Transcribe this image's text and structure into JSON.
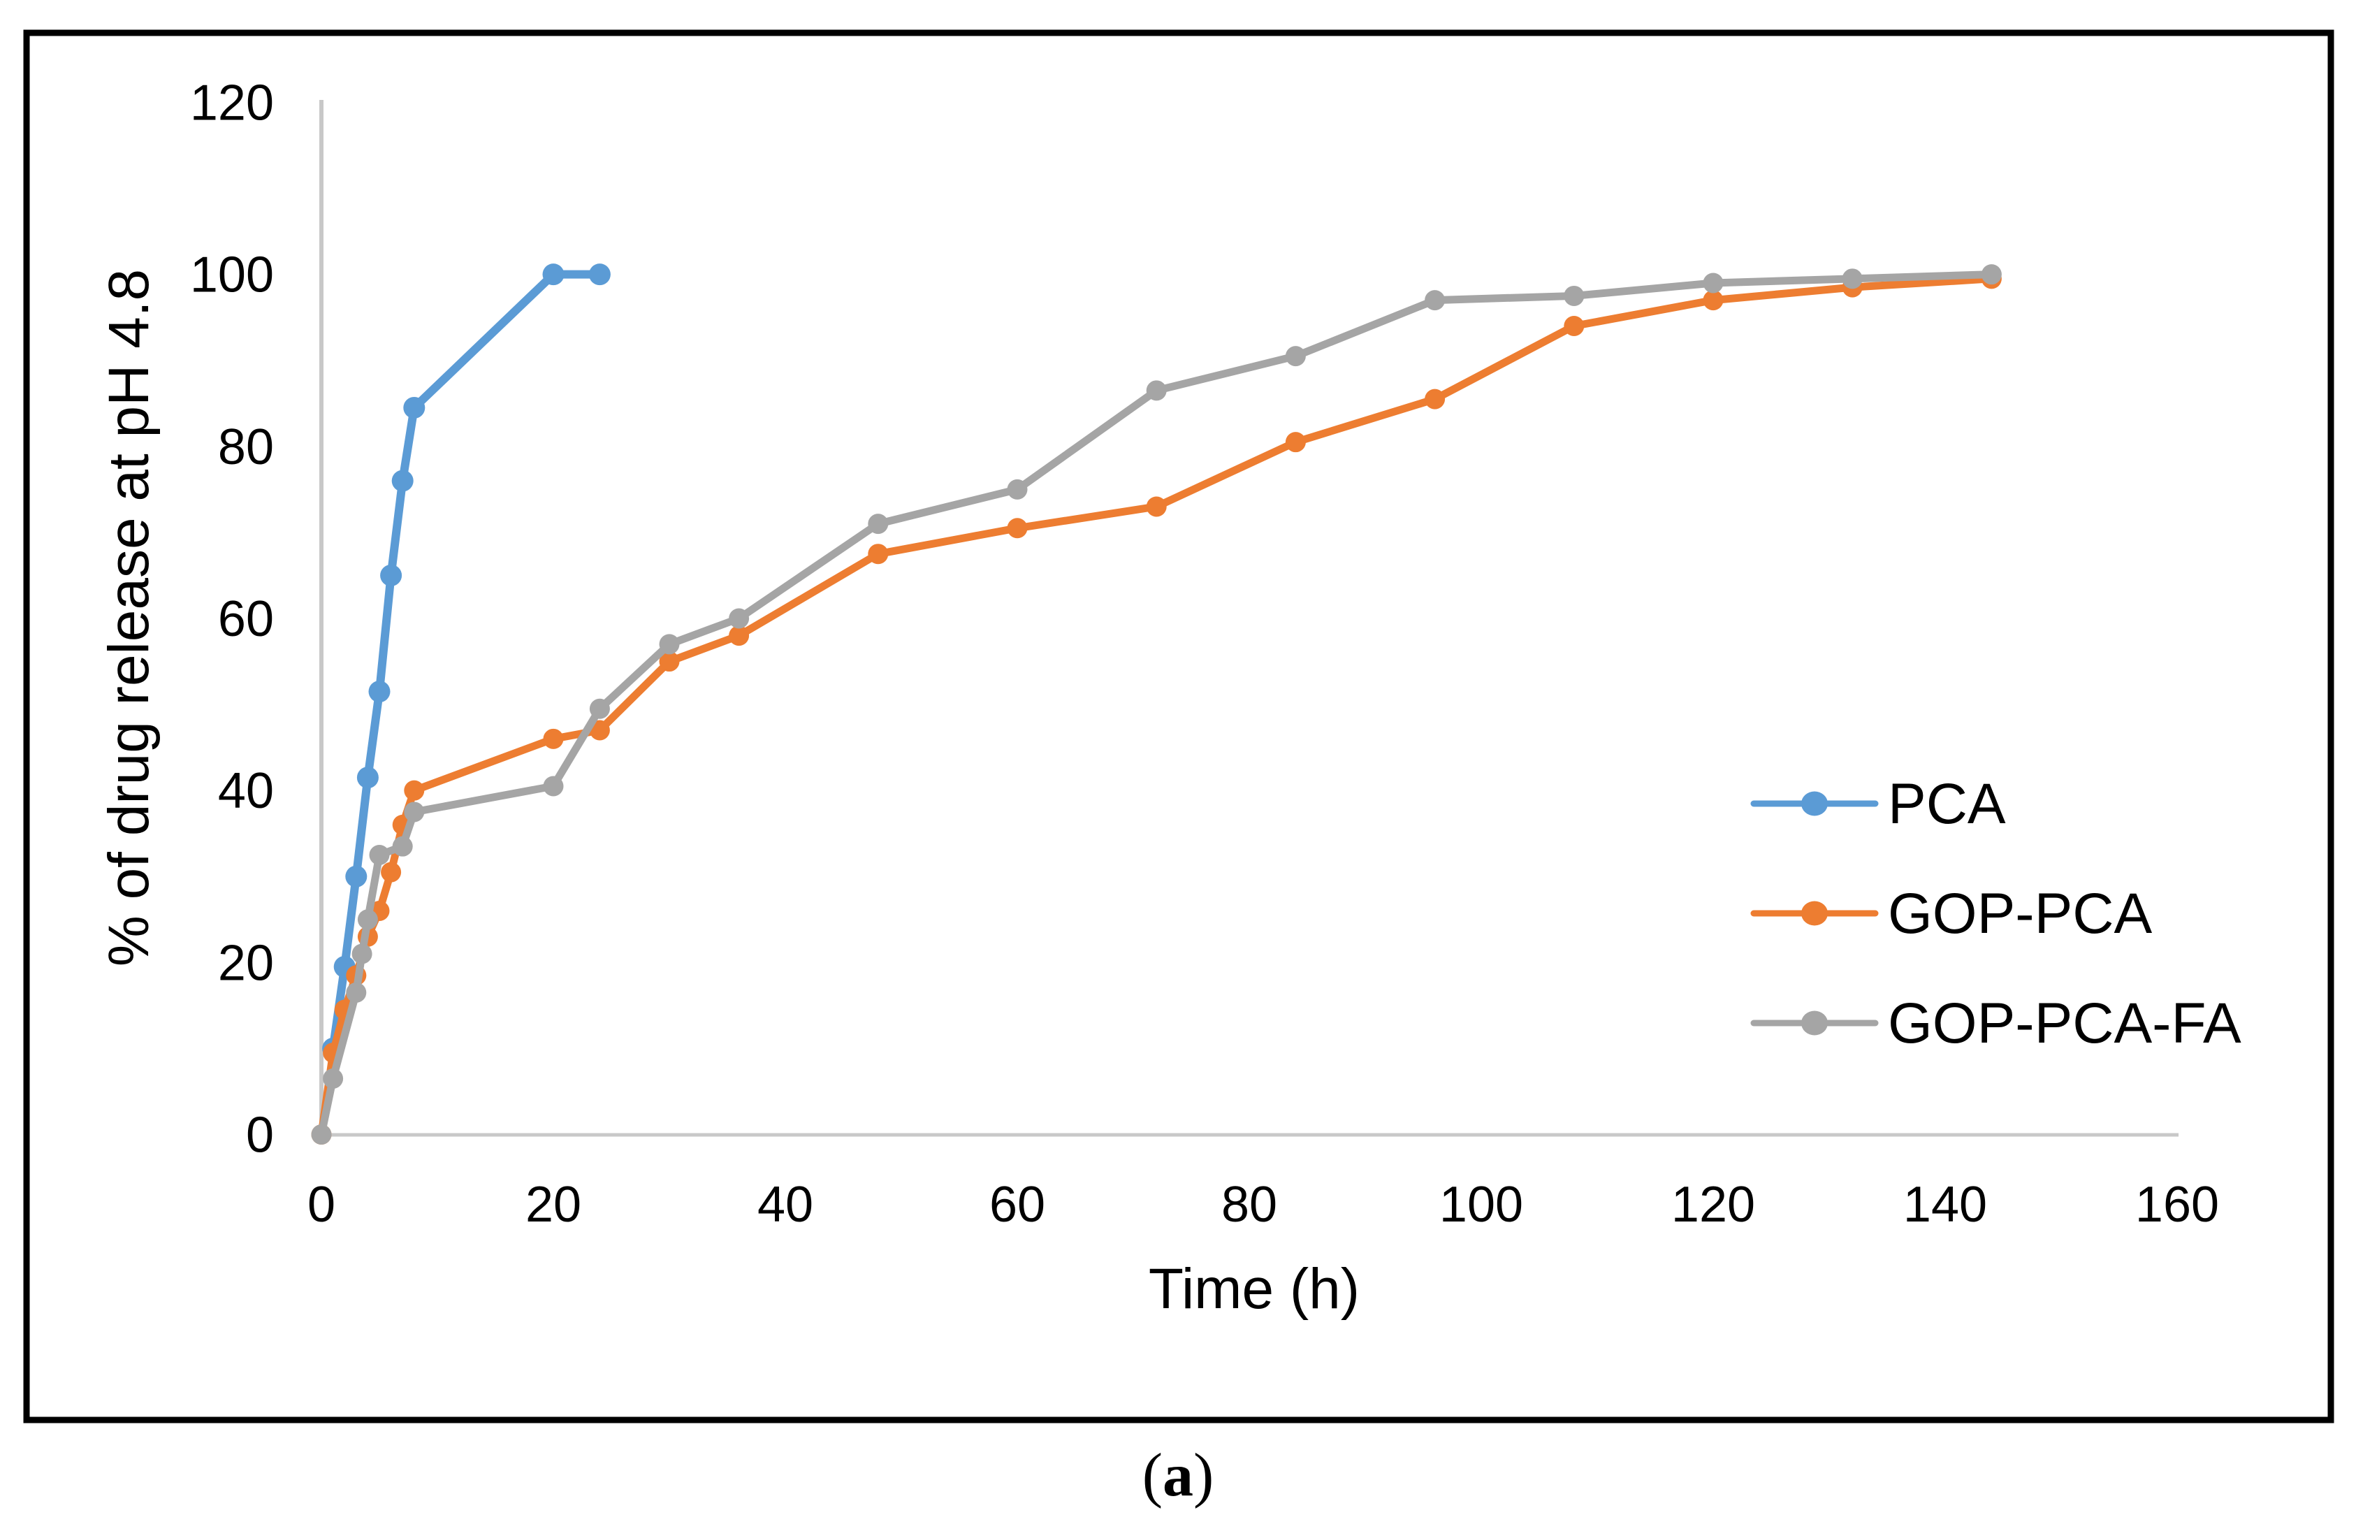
{
  "figure": {
    "caption_open": "(",
    "caption_letter": "a",
    "caption_close": ")"
  },
  "style": {
    "axis_color": "#C8C8C8",
    "frame_color": "#000000",
    "text_color": "#000000",
    "background": "#FFFFFF"
  },
  "chart_data": {
    "type": "line",
    "title": "",
    "xlabel": "Time (h)",
    "ylabel": "% of drug release at pH 4.8",
    "xlim": [
      0,
      160
    ],
    "ylim": [
      0,
      120
    ],
    "xticks": [
      0,
      20,
      40,
      60,
      80,
      100,
      120,
      140,
      160
    ],
    "yticks": [
      0,
      20,
      40,
      60,
      80,
      100,
      120
    ],
    "grid": false,
    "legend_position": "middle-right",
    "series": [
      {
        "name": "PCA",
        "color": "#5B9BD5",
        "points": [
          [
            1,
            10
          ],
          [
            2,
            19.5
          ],
          [
            3,
            30
          ],
          [
            4,
            41.5
          ],
          [
            5,
            51.5
          ],
          [
            6,
            65
          ],
          [
            7,
            76
          ],
          [
            8,
            84.5
          ],
          [
            20,
            100
          ],
          [
            24,
            100
          ]
        ]
      },
      {
        "name": "GOP-PCA",
        "color": "#ED7D31",
        "points": [
          [
            0,
            0
          ],
          [
            1,
            9.5
          ],
          [
            2,
            14.5
          ],
          [
            3,
            18.5
          ],
          [
            4,
            23
          ],
          [
            5,
            26
          ],
          [
            6,
            30.5
          ],
          [
            7,
            36
          ],
          [
            8,
            40
          ],
          [
            20,
            46
          ],
          [
            24,
            47
          ],
          [
            30,
            55
          ],
          [
            36,
            58
          ],
          [
            48,
            67.5
          ],
          [
            60,
            70.5
          ],
          [
            72,
            73
          ],
          [
            84,
            80.5
          ],
          [
            96,
            85.5
          ],
          [
            108,
            94
          ],
          [
            120,
            97
          ],
          [
            132,
            98.5
          ],
          [
            144,
            99.5
          ]
        ]
      },
      {
        "name": "GOP-PCA-FA",
        "color": "#A5A5A5",
        "points": [
          [
            0,
            0
          ],
          [
            1,
            6.5
          ],
          [
            3,
            16.5
          ],
          [
            3.5,
            21
          ],
          [
            4,
            25
          ],
          [
            5,
            32.5
          ],
          [
            7,
            33.5
          ],
          [
            8,
            37.5
          ],
          [
            20,
            40.5
          ],
          [
            24,
            49.5
          ],
          [
            30,
            57
          ],
          [
            36,
            60
          ],
          [
            48,
            71
          ],
          [
            60,
            75
          ],
          [
            72,
            86.5
          ],
          [
            84,
            90.5
          ],
          [
            96,
            97
          ],
          [
            108,
            97.5
          ],
          [
            120,
            99
          ],
          [
            132,
            99.5
          ],
          [
            144,
            100
          ]
        ]
      }
    ]
  }
}
